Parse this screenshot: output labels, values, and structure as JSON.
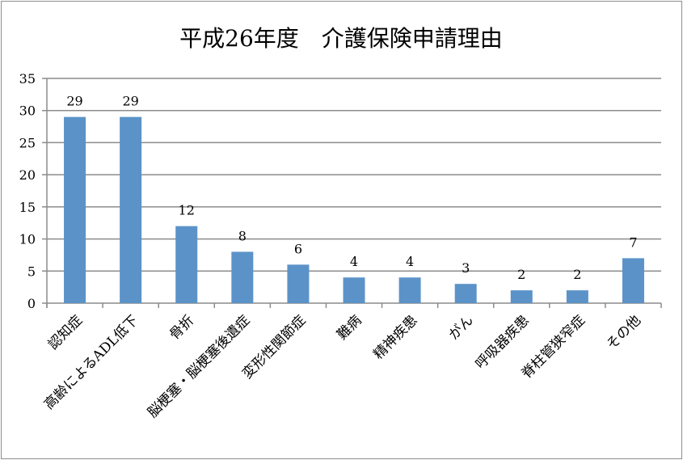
{
  "chart_data": {
    "type": "bar",
    "title": "平成26年度　介護保険申請理由",
    "categories": [
      "認知症",
      "高齢によるADL低下",
      "骨折",
      "脳梗塞・脳梗塞後遺症",
      "変形性関節症",
      "難病",
      "精神疾患",
      "がん",
      "呼吸器疾患",
      "脊柱管狭窄症",
      "その他"
    ],
    "values": [
      29,
      29,
      12,
      8,
      6,
      4,
      4,
      3,
      2,
      2,
      7
    ],
    "data_labels": [
      "29",
      "29",
      "12",
      "8",
      "6",
      "4",
      "4",
      "3",
      "2",
      "2",
      "7"
    ],
    "ylim": [
      0,
      35
    ],
    "yticks": [
      0,
      5,
      10,
      15,
      20,
      25,
      30,
      35
    ],
    "ytick_labels": [
      "0",
      "5",
      "10",
      "15",
      "20",
      "25",
      "30",
      "35"
    ],
    "xlabel": "",
    "ylabel": "",
    "grid": true,
    "legend": "none",
    "bar_color": "#5b93c9",
    "grid_color": "#8c8c8c"
  }
}
